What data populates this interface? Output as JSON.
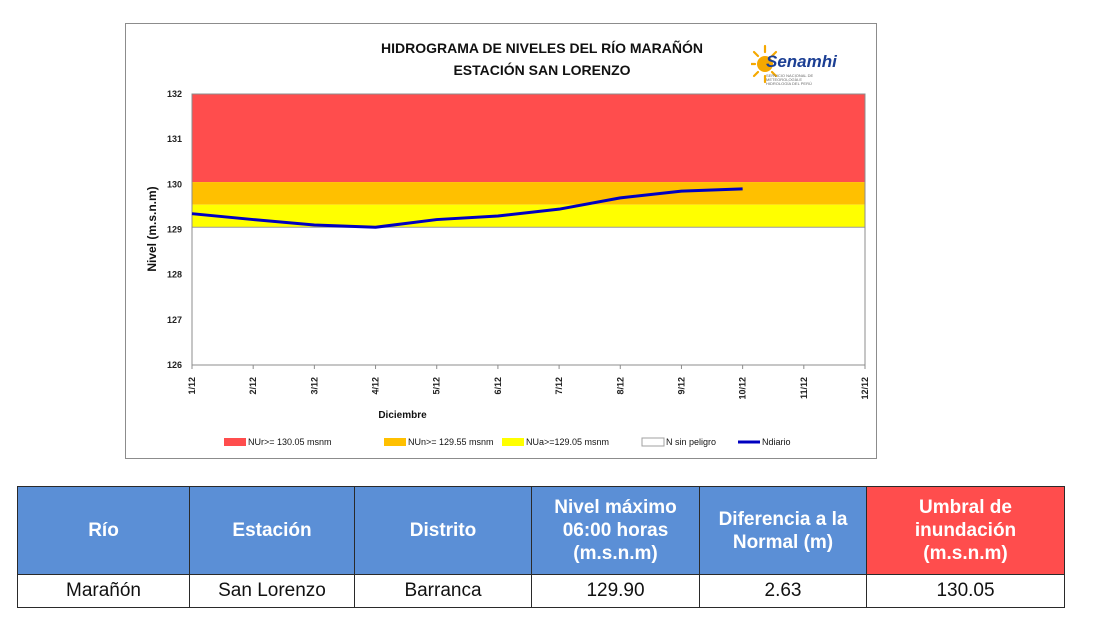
{
  "chart_data": {
    "type": "line",
    "title": "HIDROGRAMA DE NIVELES DEL RÍO MARAÑÓN",
    "subtitle": "ESTACIÓN SAN LORENZO",
    "xlabel": "Diciembre",
    "ylabel": "Nivel (m.s.n.m)",
    "categories": [
      "1/12",
      "2/12",
      "3/12",
      "4/12",
      "5/12",
      "6/12",
      "7/12",
      "8/12",
      "9/12",
      "10/12",
      "11/12",
      "12/12"
    ],
    "ylim": [
      126,
      132
    ],
    "yticks": [
      126,
      127,
      128,
      129,
      130,
      131,
      132
    ],
    "bands": [
      {
        "name": "NUr>= 130.05 msnm",
        "from": 130.05,
        "to": 132,
        "color": "#ff4d4d"
      },
      {
        "name": "NUn>= 129.55 msnm",
        "from": 129.55,
        "to": 130.05,
        "color": "#ffc000"
      },
      {
        "name": "NUa>=129.05 msnm",
        "from": 129.05,
        "to": 129.55,
        "color": "#ffff00"
      },
      {
        "name": "N sin peligro",
        "from": 126,
        "to": 129.05,
        "color": "#ffffff"
      }
    ],
    "series": [
      {
        "name": "Ndiario",
        "color": "#0000c0",
        "x": [
          1,
          2,
          3,
          4,
          5,
          6,
          7,
          8,
          9,
          10
        ],
        "values": [
          129.35,
          129.22,
          129.1,
          129.05,
          129.22,
          129.3,
          129.45,
          129.7,
          129.85,
          129.9
        ]
      }
    ],
    "legend_position": "bottom",
    "grid": false
  },
  "logo": {
    "name": "Senamhi",
    "sub": "SERVICIO NACIONAL DE METEOROLOGÍA E HIDROLOGÍA DEL PERÚ"
  },
  "table": {
    "headers": [
      "Río",
      "Estación",
      "Distrito",
      "Nivel máximo 06:00 horas (m.s.n.m)",
      "Diferencia a la Normal (m)",
      "Umbral de inundación (m.s.n.m)"
    ],
    "row": [
      "Marañón",
      "San Lorenzo",
      "Barranca",
      "129.90",
      "2.63",
      "130.05"
    ],
    "header_color": "#5b8fd6",
    "threshold_color": "#ff4d4d"
  }
}
